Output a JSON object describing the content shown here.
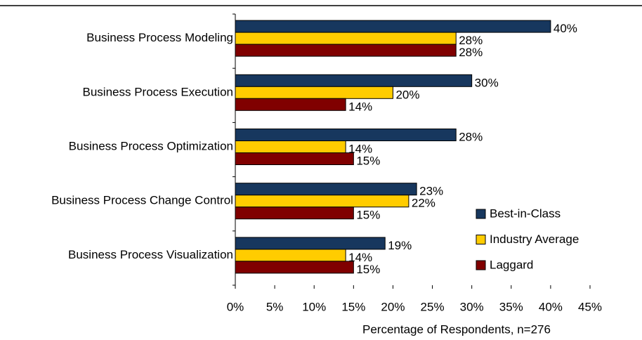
{
  "chart_data": {
    "type": "barh",
    "xlabel": "Percentage of Respondents, n=276",
    "categories": [
      "Business Process Modeling",
      "Business Process Execution",
      "Business Process Optimization",
      "Business Process Change Control",
      "Business Process Visualization"
    ],
    "series": [
      {
        "name": "Best-in-Class",
        "color": "#17375e",
        "values": [
          40,
          30,
          28,
          23,
          19
        ],
        "value_labels": [
          "40%",
          "30%",
          "28%",
          "23%",
          "19%"
        ]
      },
      {
        "name": "Industry Average",
        "color": "#ffcc00",
        "values": [
          28,
          20,
          14,
          22,
          14
        ],
        "value_labels": [
          "28%",
          "20%",
          "14%",
          "22%",
          "14%"
        ]
      },
      {
        "name": "Laggard",
        "color": "#800000",
        "values": [
          28,
          14,
          15,
          15,
          15
        ],
        "value_labels": [
          "28%",
          "14%",
          "15%",
          "15%",
          "15%"
        ]
      }
    ],
    "xlim": [
      0,
      45
    ],
    "xticks": [
      {
        "value": 0,
        "label": "0%"
      },
      {
        "value": 5,
        "label": "5%"
      },
      {
        "value": 10,
        "label": "10%"
      },
      {
        "value": 15,
        "label": "15%"
      },
      {
        "value": 20,
        "label": "20%"
      },
      {
        "value": 25,
        "label": "25%"
      },
      {
        "value": 30,
        "label": "30%"
      },
      {
        "value": 35,
        "label": "35%"
      },
      {
        "value": 40,
        "label": "40%"
      },
      {
        "value": 45,
        "label": "45%"
      }
    ],
    "legend": "lower right",
    "grid": false
  }
}
